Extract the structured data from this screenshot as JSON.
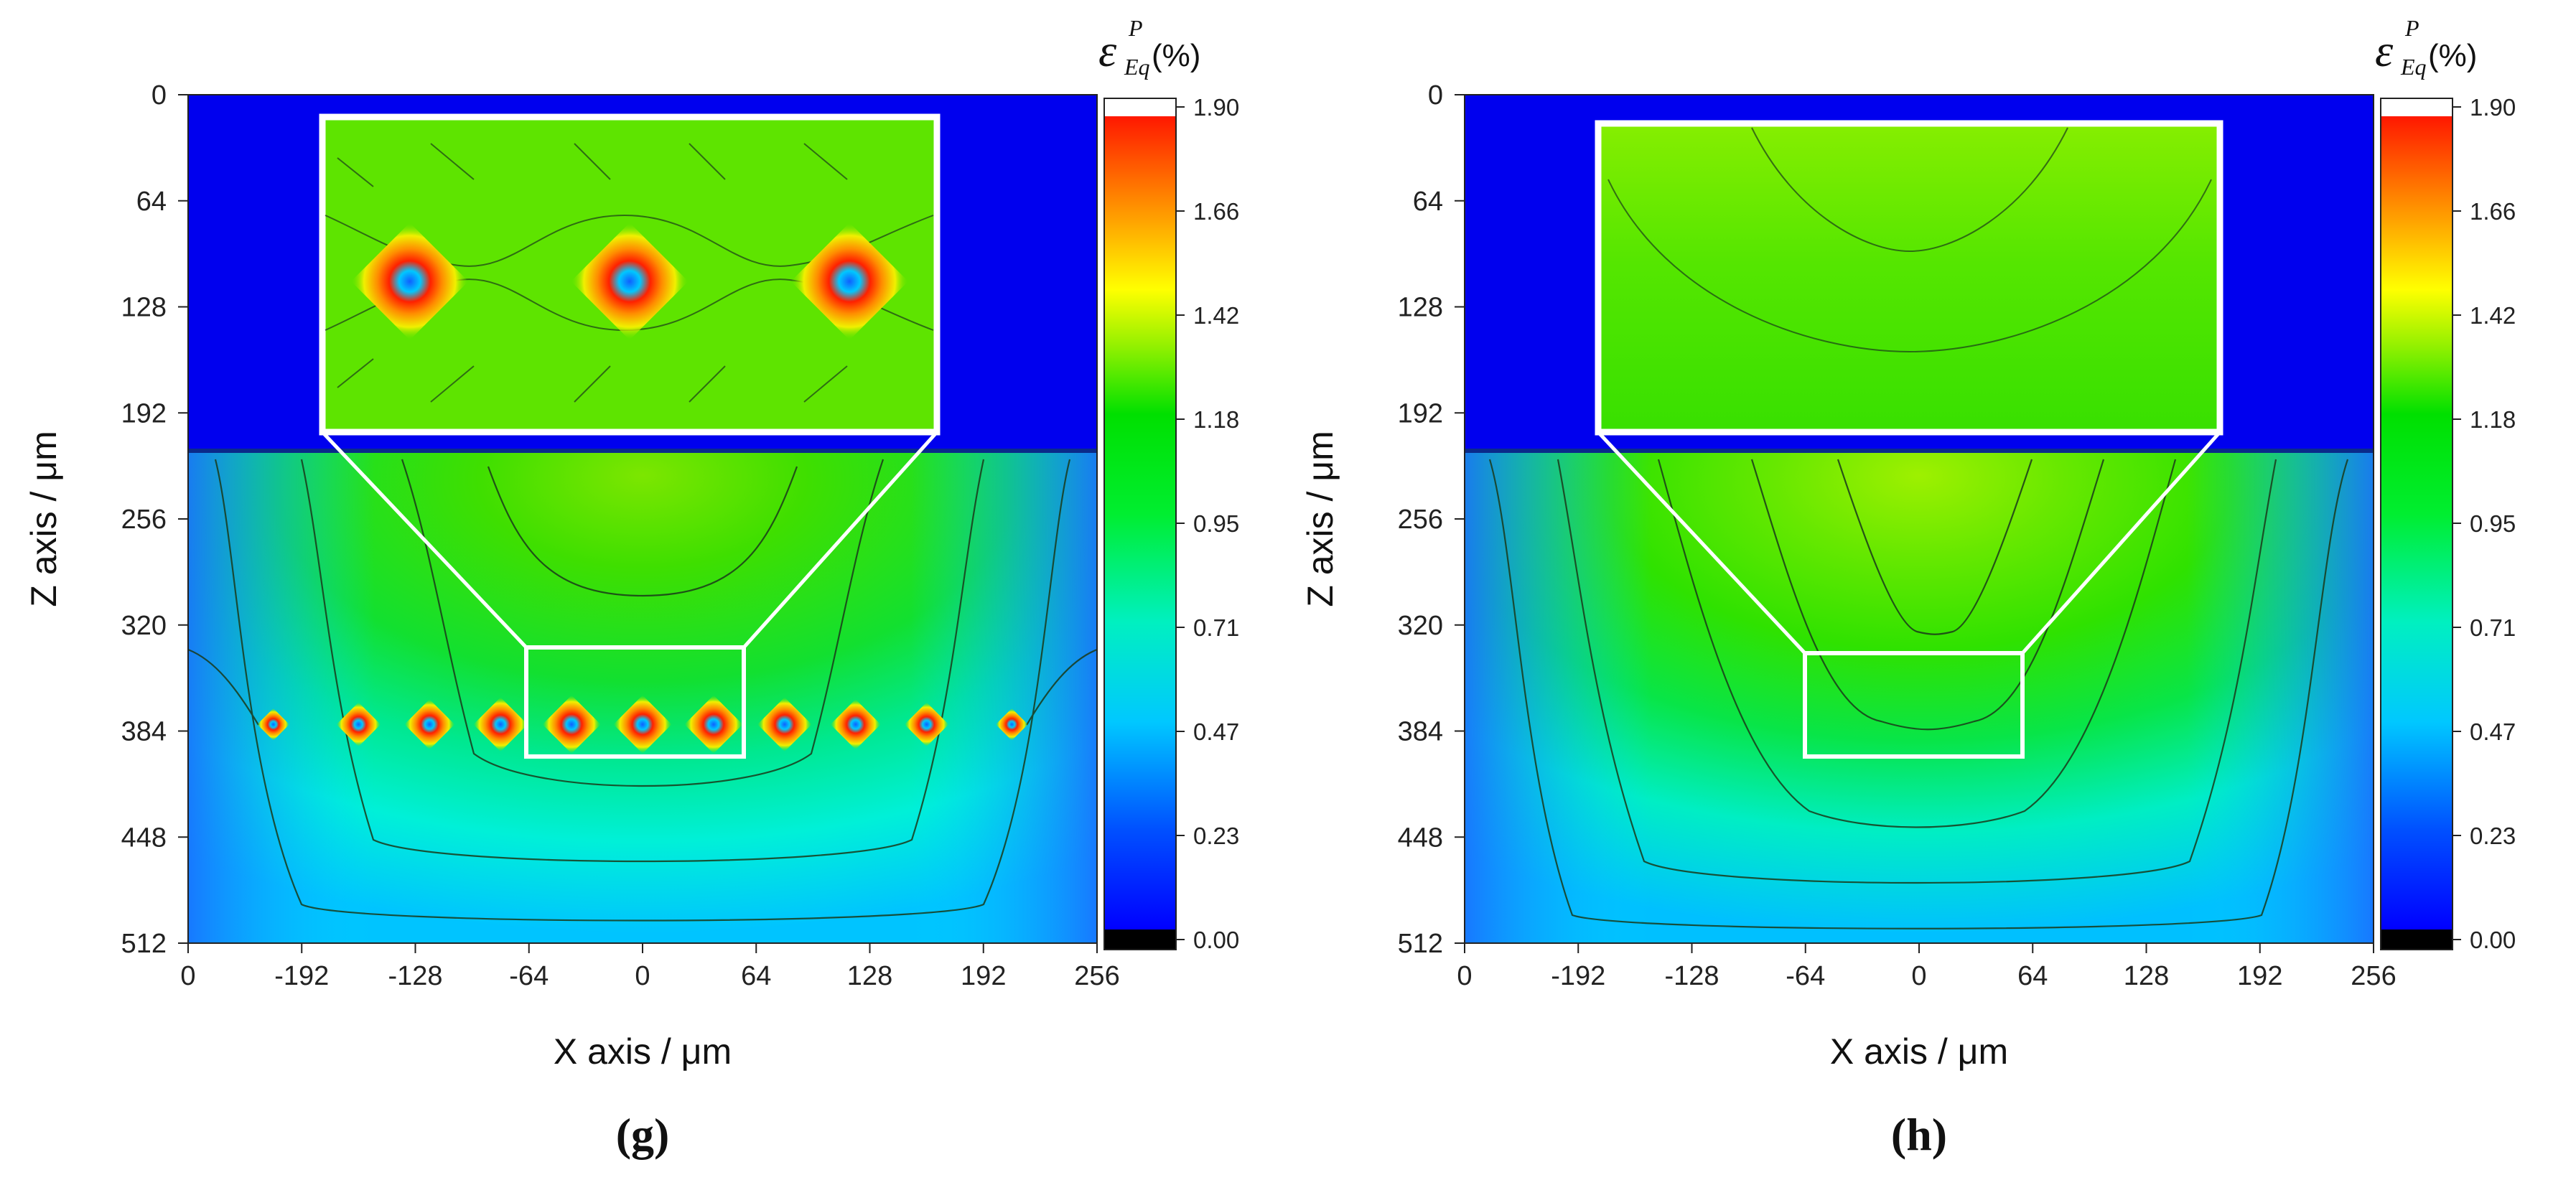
{
  "chart_data": [
    {
      "type": "heatmap",
      "panel_label": "(g)",
      "xlabel": "X axis / μm",
      "ylabel": "Z axis / μm",
      "x_tick_labels": [
        "0",
        "-192",
        "-128",
        "-64",
        "0",
        "64",
        "128",
        "192",
        "256"
      ],
      "y_tick_labels": [
        "0",
        "64",
        "128",
        "192",
        "256",
        "320",
        "384",
        "448",
        "512"
      ],
      "xlim": [
        -256,
        256
      ],
      "ylim": [
        512,
        0
      ],
      "colorbar": {
        "label_symbol": "ε",
        "label_superscript": "P",
        "label_subscript": "Eq",
        "label_unit": "(%)",
        "ticks": [
          "1.90",
          "1.66",
          "1.42",
          "1.18",
          "0.95",
          "0.71",
          "0.47",
          "0.23",
          "0.00"
        ],
        "range": [
          0,
          1.9
        ]
      },
      "field_regions": [
        {
          "region": "top layer, Z 0 to ~215",
          "strain_percent": 0
        },
        {
          "region": "substrate near top surface",
          "strain_percent": 1.1
        },
        {
          "region": "substrate bottom corners",
          "strain_percent": 0.45
        }
      ],
      "hotspots": {
        "z": 380,
        "x": [
          -208,
          -160,
          -120,
          -80,
          -40,
          0,
          40,
          80,
          120,
          160,
          208
        ],
        "peak_strain_percent": [
          0.6,
          1.2,
          1.5,
          1.7,
          1.9,
          1.9,
          1.9,
          1.7,
          1.5,
          1.2,
          0.6
        ]
      },
      "zoom_box": {
        "x_range": [
          -64,
          64
        ],
        "z_range": [
          340,
          400
        ]
      }
    },
    {
      "type": "heatmap",
      "panel_label": "(h)",
      "xlabel": "X axis / μm",
      "ylabel": "Z axis / μm",
      "x_tick_labels": [
        "0",
        "-192",
        "-128",
        "-64",
        "0",
        "64",
        "128",
        "192",
        "256"
      ],
      "y_tick_labels": [
        "0",
        "64",
        "128",
        "192",
        "256",
        "320",
        "384",
        "448",
        "512"
      ],
      "xlim": [
        -256,
        256
      ],
      "ylim": [
        512,
        0
      ],
      "colorbar": {
        "label_symbol": "ε",
        "label_superscript": "P",
        "label_subscript": "Eq",
        "label_unit": "(%)",
        "ticks": [
          "1.90",
          "1.66",
          "1.42",
          "1.18",
          "0.95",
          "0.71",
          "0.47",
          "0.23",
          "0.00"
        ],
        "range": [
          0,
          1.9
        ]
      },
      "field_regions": [
        {
          "region": "top layer, Z 0 to ~215",
          "strain_percent": 0
        },
        {
          "region": "substrate centre below top surface",
          "strain_percent": 1.25
        },
        {
          "region": "substrate bottom corners",
          "strain_percent": 0.45
        }
      ],
      "hotspots": null,
      "zoom_box": {
        "x_range": [
          -64,
          64
        ],
        "z_range": [
          345,
          400
        ]
      }
    }
  ],
  "colors": {
    "top_layer": "#0000ee",
    "frame": "#ffffff",
    "contour": "#1a3a1a"
  }
}
